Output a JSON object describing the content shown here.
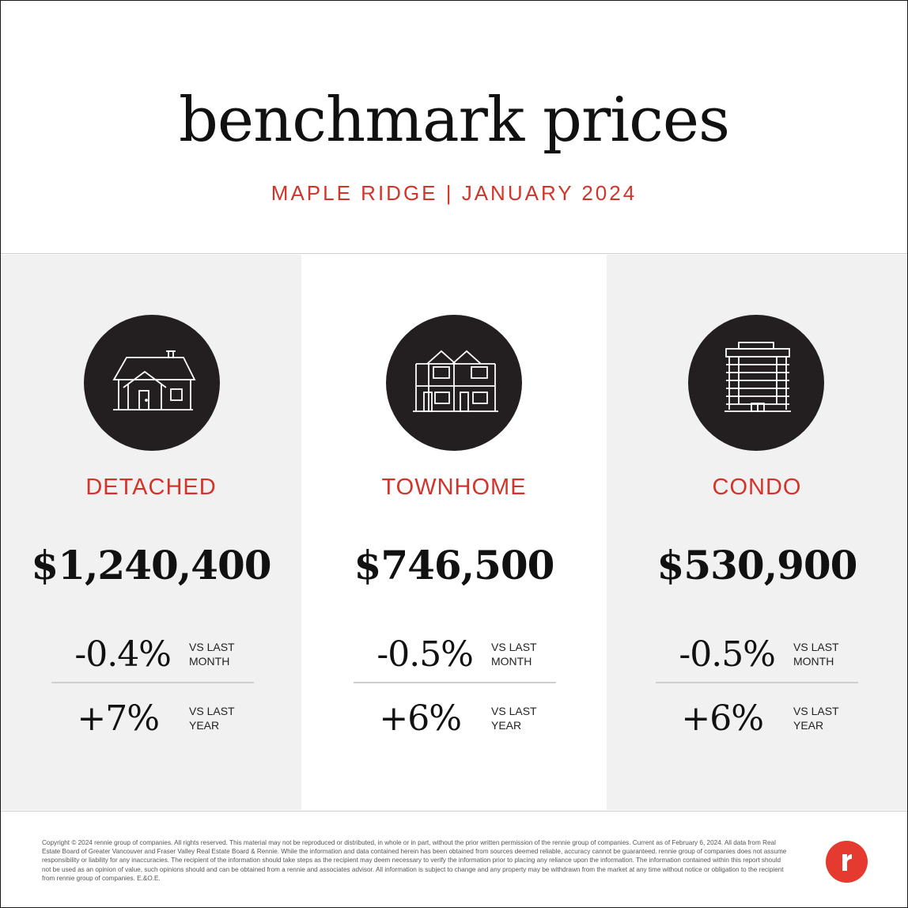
{
  "header": {
    "title": "benchmark prices",
    "subtitle": "MAPLE RIDGE | JANUARY 2024"
  },
  "panels": [
    {
      "icon": "house-icon",
      "label": "DETACHED",
      "price": "$1,240,400",
      "month_change": "-0.4%",
      "month_label_1": "VS LAST",
      "month_label_2": "MONTH",
      "year_change": "+7%",
      "year_label_1": "VS LAST",
      "year_label_2": "YEAR"
    },
    {
      "icon": "townhome-icon",
      "label": "TOWNHOME",
      "price": "$746,500",
      "month_change": "-0.5%",
      "month_label_1": "VS LAST",
      "month_label_2": "MONTH",
      "year_change": "+6%",
      "year_label_1": "VS LAST",
      "year_label_2": "YEAR"
    },
    {
      "icon": "condo-building-icon",
      "label": "CONDO",
      "price": "$530,900",
      "month_change": "-0.5%",
      "month_label_1": "VS LAST",
      "month_label_2": "MONTH",
      "year_change": "+6%",
      "year_label_1": "VS LAST",
      "year_label_2": "YEAR"
    }
  ],
  "footer": {
    "disclaimer": "Copyright © 2024 rennie group of companies. All rights reserved. This material may not be reproduced or distributed, in whole or in part, without the prior written permission of the rennie group of companies. Current as of February 6, 2024. All data from Real Estate Board of Greater Vancouver and Fraser Valley Real Estate Board & Rennie. While the information and data contained herein has been obtained from sources deemed reliable, accuracy cannot be guaranteed. rennie group of companies does not assume responsibility or liability for any inaccuracies. The recipient of the information should take steps as the recipient may deem necessary to verify the information prior to placing any reliance upon the information. The information contained within this report should not be used as an opinion of value, such opinions should and can be obtained from a rennie and associates advisor. All information is subject to change and any property may be withdrawn from the market at any time without notice or obligation to the recipient from rennie group of companies. E.&O.E."
  },
  "colors": {
    "accent": "#d3342a",
    "logo": "#e53a2f",
    "icon_bg": "#231f20",
    "panel_shade": "#f1f1f1"
  },
  "logo_icon": "rennie-logo-icon"
}
